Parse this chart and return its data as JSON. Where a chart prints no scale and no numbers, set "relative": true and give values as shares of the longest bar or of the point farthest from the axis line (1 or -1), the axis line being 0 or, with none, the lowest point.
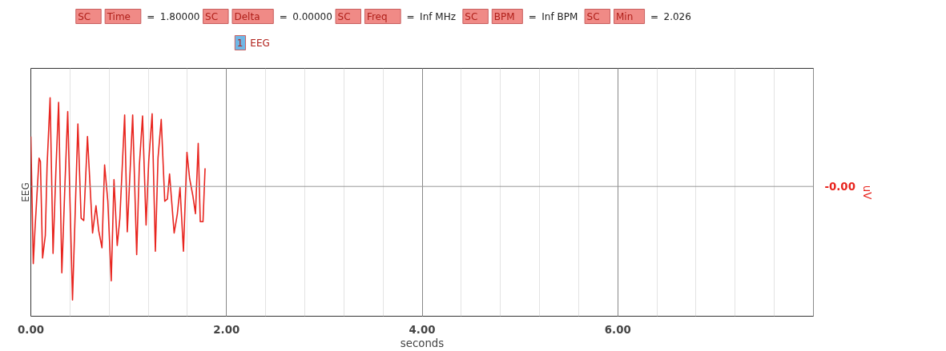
{
  "chart_data": {
    "type": "line",
    "relative": true,
    "xlabel": "seconds",
    "ylabel": "EEG",
    "y2label": "uV",
    "xlim": [
      0,
      8
    ],
    "xticks": [
      {
        "value": 0,
        "label": "0.00"
      },
      {
        "value": 2,
        "label": "2.00"
      },
      {
        "value": 4,
        "label": "4.00"
      },
      {
        "value": 6,
        "label": "6.00"
      }
    ],
    "grid": "x",
    "marker": "none",
    "line_style": "solid",
    "ref_lines": [
      {
        "axis": "y",
        "value": 0,
        "label": "-0.00",
        "color": "#999999"
      }
    ],
    "annotations": [
      "SC",
      "Time",
      "=",
      "1.80000",
      "SC",
      "Delta",
      "=",
      "0.00000",
      "SC",
      "Freq",
      "=",
      "Inf MHz",
      "SC",
      "BPM",
      "=",
      "Inf BPM",
      "SC",
      "Min",
      "=",
      "2.026",
      "1",
      "EEG"
    ],
    "x": [
      0,
      0.025,
      0.043,
      0.084,
      0.098,
      0.12,
      0.148,
      0.166,
      0.197,
      0.227,
      0.257,
      0.284,
      0.317,
      0.35,
      0.377,
      0.426,
      0.481,
      0.514,
      0.541,
      0.579,
      0.631,
      0.666,
      0.694,
      0.727,
      0.754,
      0.787,
      0.822,
      0.85,
      0.883,
      0.91,
      0.959,
      0.986,
      1.041,
      1.082,
      1.109,
      1.142,
      1.178,
      1.205,
      1.24,
      1.273,
      1.3,
      1.333,
      1.369,
      1.396,
      1.418,
      1.465,
      1.498,
      1.525,
      1.56,
      1.596,
      1.623,
      1.656,
      1.683,
      1.711,
      1.732,
      1.76,
      1.781
    ],
    "series": [
      {
        "color": "#e8251f",
        "values": [
          0.44,
          -0.68,
          -0.37,
          0.25,
          0.22,
          -0.63,
          -0.43,
          0.18,
          0.78,
          -0.59,
          0.16,
          0.74,
          -0.76,
          0.05,
          0.66,
          -1.0,
          0.55,
          -0.28,
          -0.3,
          0.44,
          -0.41,
          -0.17,
          -0.39,
          -0.54,
          0.19,
          -0.13,
          -0.83,
          0.06,
          -0.52,
          -0.28,
          0.63,
          -0.4,
          0.63,
          -0.6,
          0.18,
          0.62,
          -0.34,
          0.22,
          0.64,
          -0.57,
          0.25,
          0.59,
          -0.13,
          -0.11,
          0.11,
          -0.41,
          -0.24,
          -0.01,
          -0.57,
          0.3,
          0.07,
          -0.08,
          -0.24,
          0.38,
          -0.31,
          -0.31,
          0.16
        ]
      }
    ]
  }
}
